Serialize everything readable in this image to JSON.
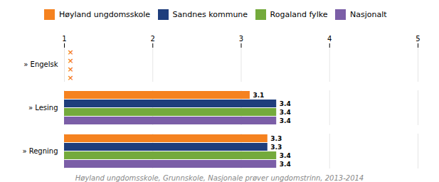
{
  "chart_data": {
    "type": "bar",
    "orientation": "horizontal",
    "subtitle": "Høyland ungdomsskole, Grunnskole, Nasjonale prøver ungdomstrinn, 2013-2014",
    "categories": [
      "» Engelsk",
      "» Lesing",
      "» Regning"
    ],
    "series": [
      {
        "name": "Høyland ungdomsskole",
        "color": "#f5821f",
        "values": [
          null,
          3.1,
          3.3
        ]
      },
      {
        "name": "Sandnes kommune",
        "color": "#1f3e7c",
        "values": [
          null,
          3.4,
          3.3
        ]
      },
      {
        "name": "Rogaland fylke",
        "color": "#74aa3c",
        "values": [
          null,
          3.4,
          3.4
        ]
      },
      {
        "name": "Nasjonalt",
        "color": "#7b5ea7",
        "values": [
          null,
          3.4,
          3.4
        ]
      }
    ],
    "annotations": [
      {
        "text": "×",
        "category": "» Engelsk",
        "series": "Høyland ungdomsskole",
        "color": "#f5821f"
      },
      {
        "text": "×",
        "category": "» Engelsk",
        "series": "Sandnes kommune",
        "color": "#f5821f"
      },
      {
        "text": "×",
        "category": "» Engelsk",
        "series": "Rogaland fylke",
        "color": "#f5821f"
      },
      {
        "text": "×",
        "category": "» Engelsk",
        "series": "Nasjonalt",
        "color": "#f5821f"
      }
    ],
    "xlim": [
      1,
      5
    ],
    "xticks": [
      1,
      2,
      3,
      4,
      5
    ],
    "grid": true,
    "data_labels": true,
    "legend": "top"
  }
}
